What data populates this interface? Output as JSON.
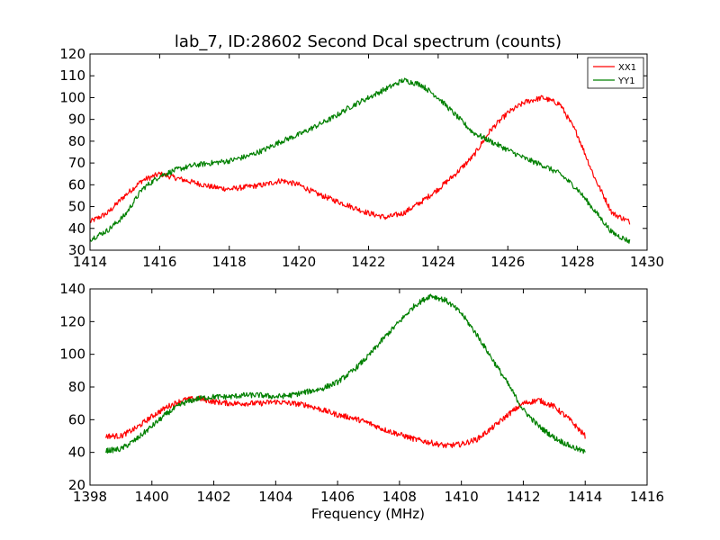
{
  "chart_data": [
    {
      "type": "line",
      "title": "lab_7, ID:28602 Second Dcal spectrum (counts)",
      "xlabel": "",
      "ylabel": "",
      "xlim": [
        1414,
        1430
      ],
      "ylim": [
        30,
        120
      ],
      "xticks": [
        "1414",
        "1416",
        "1418",
        "1420",
        "1422",
        "1424",
        "1426",
        "1428",
        "1430"
      ],
      "yticks": [
        "30",
        "40",
        "50",
        "60",
        "70",
        "80",
        "90",
        "100",
        "110",
        "120"
      ],
      "grid": false,
      "legend": "top-right",
      "series": [
        {
          "name": "XX1",
          "color": "#ff0000",
          "x": [
            1414.0,
            1414.5,
            1415.0,
            1415.5,
            1416.0,
            1416.5,
            1417.0,
            1417.5,
            1418.0,
            1418.5,
            1419.0,
            1419.5,
            1420.0,
            1420.5,
            1421.0,
            1421.5,
            1422.0,
            1422.5,
            1423.0,
            1423.5,
            1424.0,
            1424.5,
            1425.0,
            1425.5,
            1426.0,
            1426.5,
            1427.0,
            1427.5,
            1428.0,
            1428.5,
            1429.0,
            1429.5
          ],
          "y": [
            43,
            47,
            55,
            62,
            65,
            63,
            61,
            59,
            58,
            59,
            60,
            62,
            60,
            56,
            53,
            50,
            47,
            45,
            47,
            52,
            58,
            65,
            73,
            85,
            93,
            98,
            100,
            97,
            83,
            63,
            47,
            43
          ]
        },
        {
          "name": "YY1",
          "color": "#008000",
          "x": [
            1414.0,
            1414.5,
            1415.0,
            1415.5,
            1416.0,
            1416.5,
            1417.0,
            1417.5,
            1418.0,
            1418.5,
            1419.0,
            1419.5,
            1420.0,
            1420.5,
            1421.0,
            1421.5,
            1422.0,
            1422.5,
            1423.0,
            1423.5,
            1424.0,
            1424.5,
            1425.0,
            1425.5,
            1426.0,
            1426.5,
            1427.0,
            1427.5,
            1428.0,
            1428.5,
            1429.0,
            1429.5
          ],
          "y": [
            35,
            39,
            46,
            58,
            64,
            67,
            69,
            70,
            71,
            73,
            76,
            80,
            83,
            87,
            91,
            96,
            100,
            104,
            108,
            106,
            100,
            92,
            84,
            80,
            76,
            72,
            69,
            65,
            58,
            48,
            38,
            34
          ]
        }
      ]
    },
    {
      "type": "line",
      "title": "",
      "xlabel": "Frequency (MHz)",
      "ylabel": "",
      "xlim": [
        1398,
        1416
      ],
      "ylim": [
        20,
        140
      ],
      "xticks": [
        "1398",
        "1400",
        "1402",
        "1404",
        "1406",
        "1408",
        "1410",
        "1412",
        "1414",
        "1416"
      ],
      "yticks": [
        "20",
        "40",
        "60",
        "80",
        "100",
        "120",
        "140"
      ],
      "grid": false,
      "legend": "none",
      "series": [
        {
          "color": "#ff0000",
          "x": [
            1398.5,
            1399.0,
            1399.5,
            1400.0,
            1400.5,
            1401.0,
            1401.5,
            1402.0,
            1402.5,
            1403.0,
            1403.5,
            1404.0,
            1404.5,
            1405.0,
            1405.5,
            1406.0,
            1406.5,
            1407.0,
            1407.5,
            1408.0,
            1408.5,
            1409.0,
            1409.5,
            1410.0,
            1410.5,
            1411.0,
            1411.5,
            1412.0,
            1412.5,
            1413.0,
            1413.5,
            1414.0
          ],
          "y": [
            50,
            50,
            55,
            62,
            68,
            72,
            73,
            71,
            70,
            70,
            70,
            71,
            70,
            69,
            66,
            63,
            61,
            58,
            54,
            51,
            48,
            46,
            44,
            45,
            48,
            55,
            63,
            70,
            72,
            68,
            60,
            50
          ]
        },
        {
          "color": "#008000",
          "x": [
            1398.5,
            1399.0,
            1399.5,
            1400.0,
            1400.5,
            1401.0,
            1401.5,
            1402.0,
            1402.5,
            1403.0,
            1403.5,
            1404.0,
            1404.5,
            1405.0,
            1405.5,
            1406.0,
            1406.5,
            1407.0,
            1407.5,
            1408.0,
            1408.5,
            1409.0,
            1409.5,
            1410.0,
            1410.5,
            1411.0,
            1411.5,
            1412.0,
            1412.5,
            1413.0,
            1413.5,
            1414.0
          ],
          "y": [
            41,
            42,
            48,
            56,
            64,
            70,
            73,
            74,
            74,
            75,
            75,
            74,
            75,
            77,
            79,
            83,
            90,
            99,
            110,
            120,
            130,
            136,
            133,
            125,
            112,
            97,
            82,
            66,
            56,
            49,
            44,
            40
          ]
        }
      ]
    }
  ]
}
